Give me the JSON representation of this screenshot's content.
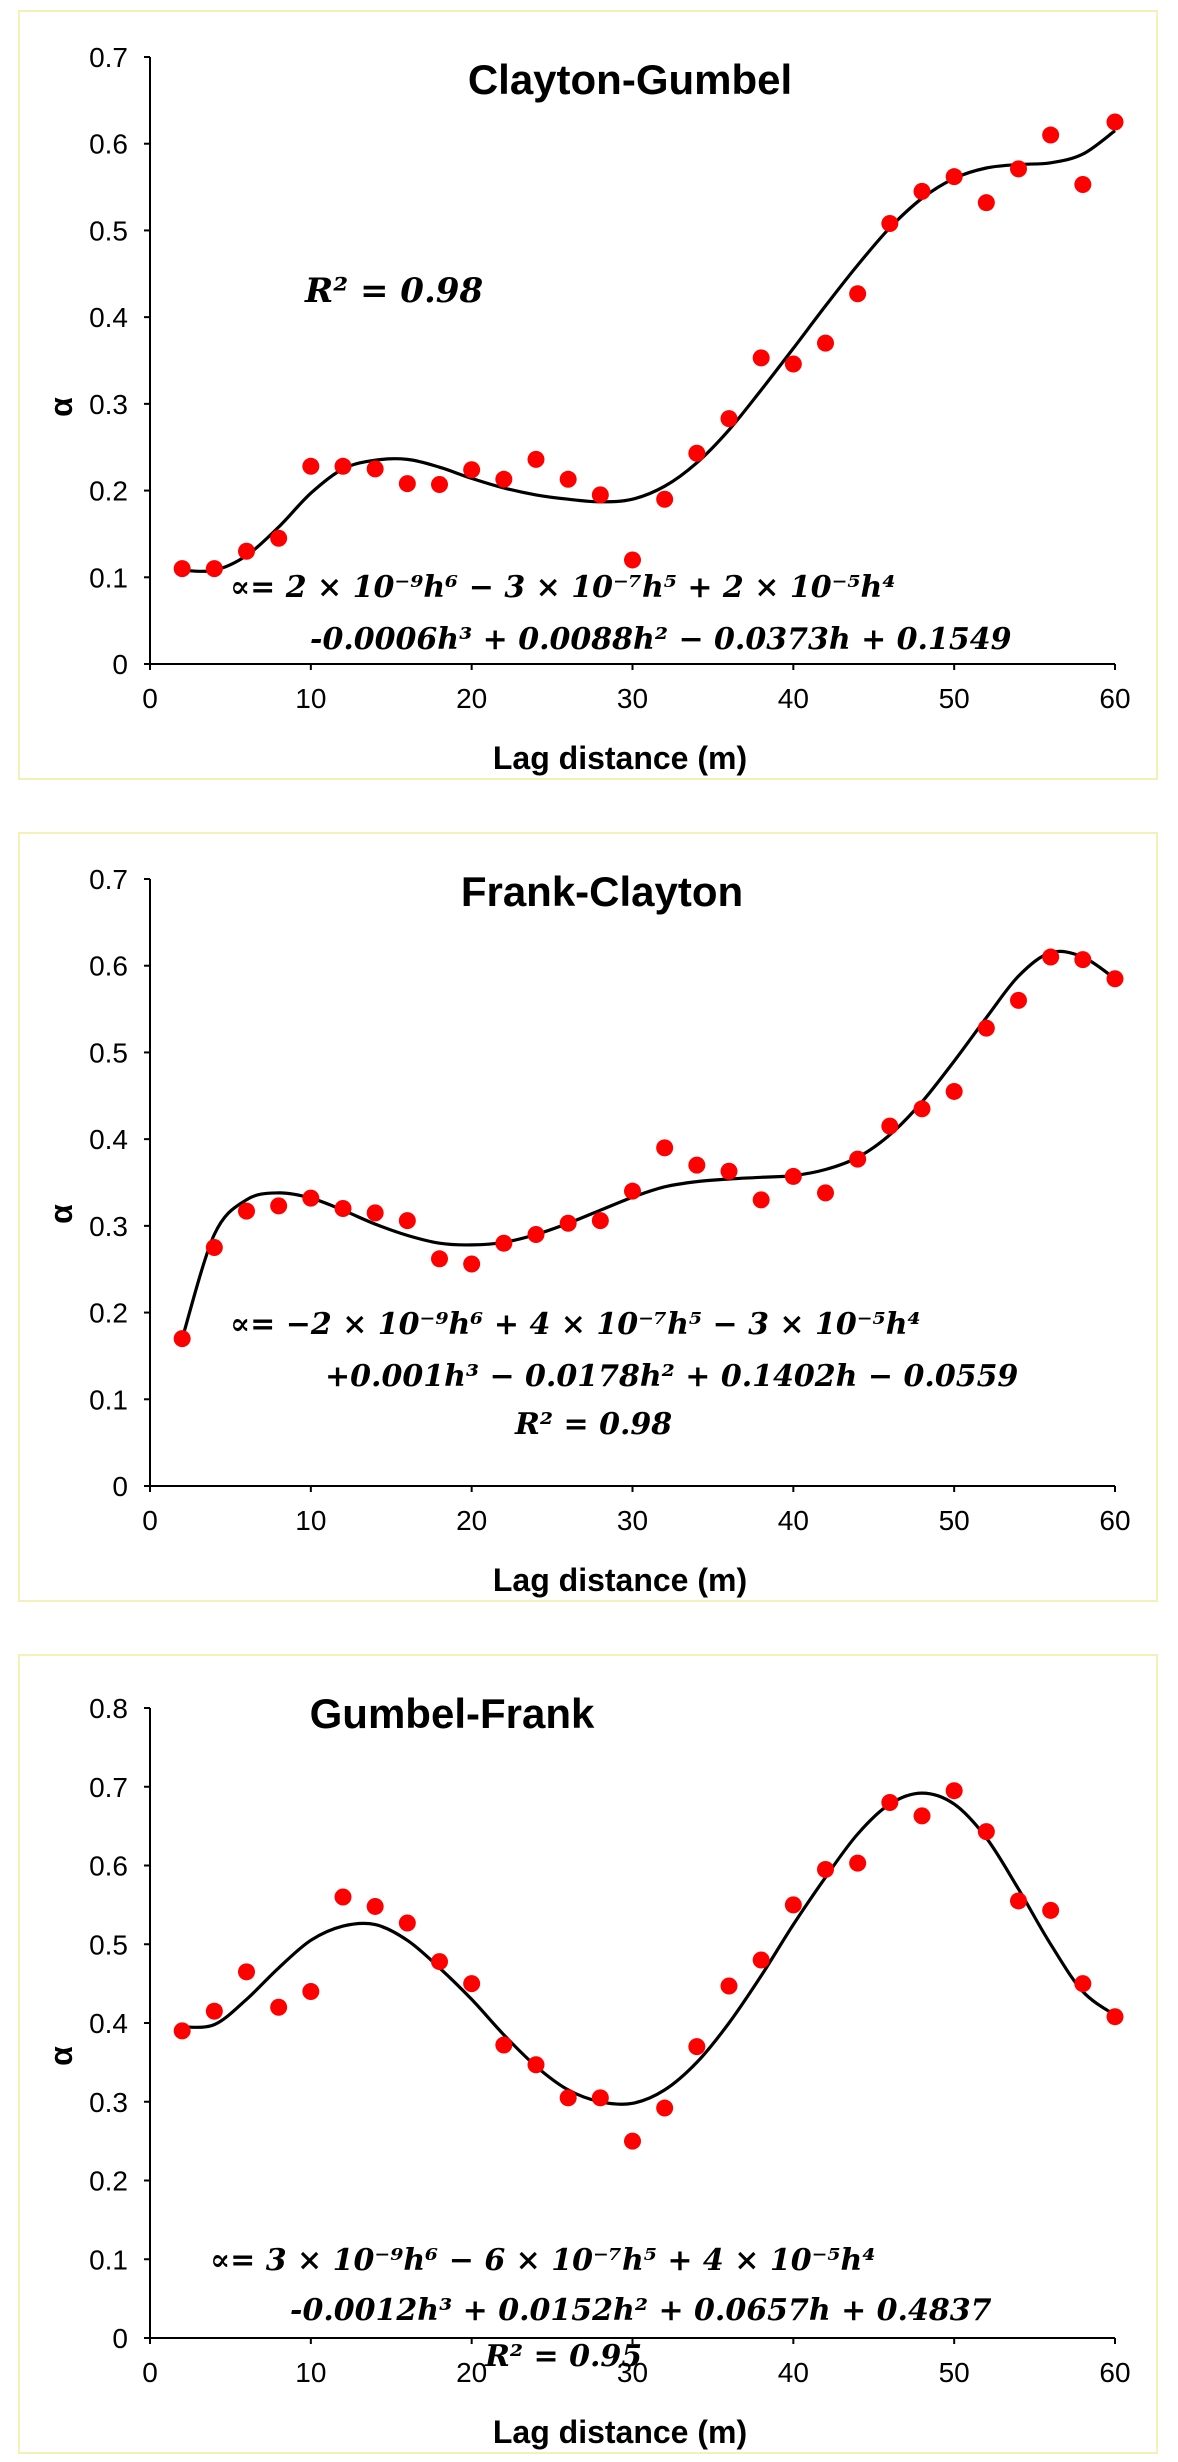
{
  "chart_data": [
    {
      "type": "scatter",
      "title": "Clayton-Gumbel",
      "xlabel": "Lag distance (m)",
      "ylabel": "α",
      "xlim": [
        0,
        60
      ],
      "ylim": [
        0,
        0.7
      ],
      "xticks": [
        0,
        10,
        20,
        30,
        40,
        50,
        60
      ],
      "yticks": [
        0,
        0.1,
        0.2,
        0.3,
        0.4,
        0.5,
        0.6,
        0.7
      ],
      "x": [
        2,
        4,
        6,
        8,
        10,
        12,
        14,
        16,
        18,
        20,
        22,
        24,
        26,
        28,
        30,
        32,
        34,
        36,
        38,
        40,
        42,
        44,
        46,
        48,
        50,
        52,
        54,
        56,
        58,
        60
      ],
      "values": [
        0.11,
        0.11,
        0.13,
        0.145,
        0.228,
        0.228,
        0.225,
        0.208,
        0.207,
        0.224,
        0.213,
        0.236,
        0.213,
        0.195,
        0.12,
        0.19,
        0.243,
        0.283,
        0.353,
        0.346,
        0.37,
        0.427,
        0.508,
        0.545,
        0.562,
        0.532,
        0.571,
        0.61,
        0.553,
        0.625
      ],
      "trendline_x": [
        2,
        4,
        6,
        8,
        10,
        12,
        14,
        16,
        18,
        20,
        22,
        24,
        26,
        28,
        30,
        32,
        34,
        36,
        38,
        40,
        42,
        44,
        46,
        48,
        50,
        52,
        54,
        56,
        58,
        60
      ],
      "trendline": [
        0.108,
        0.108,
        0.125,
        0.158,
        0.197,
        0.225,
        0.235,
        0.236,
        0.227,
        0.214,
        0.203,
        0.195,
        0.19,
        0.187,
        0.19,
        0.205,
        0.232,
        0.27,
        0.316,
        0.364,
        0.413,
        0.46,
        0.503,
        0.537,
        0.56,
        0.572,
        0.576,
        0.578,
        0.588,
        0.615
      ],
      "equation_line1": "∝= 2 × 10⁻⁹h⁶ − 3 × 10⁻⁷h⁵ + 2 × 10⁻⁵h⁴",
      "equation_line2": "-0.0006h³ + 0.0088h² − 0.0373h + 0.1549",
      "r_squared": "R² = 0.98"
    },
    {
      "type": "scatter",
      "title": "Frank-Clayton",
      "xlabel": "Lag distance (m)",
      "ylabel": "α",
      "xlim": [
        0,
        60
      ],
      "ylim": [
        0,
        0.7
      ],
      "xticks": [
        0,
        10,
        20,
        30,
        40,
        50,
        60
      ],
      "yticks": [
        0,
        0.1,
        0.2,
        0.3,
        0.4,
        0.5,
        0.6,
        0.7
      ],
      "x": [
        2,
        4,
        6,
        8,
        10,
        12,
        14,
        16,
        18,
        20,
        22,
        24,
        26,
        28,
        30,
        32,
        34,
        36,
        38,
        40,
        42,
        44,
        46,
        48,
        50,
        52,
        54,
        56,
        58,
        60
      ],
      "values": [
        0.17,
        0.275,
        0.317,
        0.323,
        0.332,
        0.32,
        0.315,
        0.306,
        0.262,
        0.256,
        0.28,
        0.29,
        0.303,
        0.306,
        0.34,
        0.39,
        0.37,
        0.363,
        0.33,
        0.357,
        0.338,
        0.377,
        0.415,
        0.435,
        0.455,
        0.528,
        0.56,
        0.61,
        0.607,
        0.585
      ],
      "trendline_x": [
        2,
        4,
        6,
        8,
        10,
        12,
        14,
        16,
        18,
        20,
        22,
        24,
        26,
        28,
        30,
        32,
        34,
        36,
        38,
        40,
        42,
        44,
        46,
        48,
        50,
        52,
        54,
        56,
        58,
        60
      ],
      "trendline": [
        0.17,
        0.29,
        0.33,
        0.338,
        0.332,
        0.318,
        0.302,
        0.289,
        0.28,
        0.278,
        0.281,
        0.29,
        0.303,
        0.318,
        0.333,
        0.345,
        0.351,
        0.354,
        0.356,
        0.358,
        0.365,
        0.379,
        0.405,
        0.443,
        0.49,
        0.54,
        0.588,
        0.615,
        0.61,
        0.585
      ],
      "equation_line1": "∝= −2 × 10⁻⁹h⁶ + 4 × 10⁻⁷h⁵ − 3 × 10⁻⁵h⁴",
      "equation_line2": "+0.001h³ − 0.0178h² + 0.1402h − 0.0559",
      "r_squared": "R² = 0.98"
    },
    {
      "type": "scatter",
      "title": "Gumbel-Frank",
      "xlabel": "Lag distance (m)",
      "ylabel": "α",
      "xlim": [
        0,
        60
      ],
      "ylim": [
        0,
        0.8
      ],
      "xticks": [
        0,
        10,
        20,
        30,
        40,
        50,
        60
      ],
      "yticks": [
        0,
        0.1,
        0.2,
        0.3,
        0.4,
        0.5,
        0.6,
        0.7,
        0.8
      ],
      "x": [
        2,
        4,
        6,
        8,
        10,
        12,
        14,
        16,
        18,
        20,
        22,
        24,
        26,
        28,
        30,
        32,
        34,
        36,
        38,
        40,
        42,
        44,
        46,
        48,
        50,
        52,
        54,
        56,
        58,
        60
      ],
      "values": [
        0.39,
        0.415,
        0.465,
        0.42,
        0.44,
        0.56,
        0.548,
        0.527,
        0.478,
        0.45,
        0.372,
        0.347,
        0.305,
        0.305,
        0.25,
        0.292,
        0.37,
        0.447,
        0.48,
        0.55,
        0.595,
        0.603,
        0.68,
        0.663,
        0.695,
        0.643,
        0.555,
        0.543,
        0.45,
        0.408
      ],
      "trendline_x": [
        2,
        4,
        6,
        8,
        10,
        12,
        14,
        16,
        18,
        20,
        22,
        24,
        26,
        28,
        30,
        32,
        34,
        36,
        38,
        40,
        42,
        44,
        46,
        48,
        50,
        52,
        54,
        56,
        58,
        60
      ],
      "trendline": [
        0.395,
        0.398,
        0.43,
        0.47,
        0.505,
        0.523,
        0.525,
        0.505,
        0.47,
        0.43,
        0.385,
        0.345,
        0.315,
        0.3,
        0.298,
        0.315,
        0.35,
        0.4,
        0.46,
        0.525,
        0.585,
        0.64,
        0.678,
        0.692,
        0.678,
        0.635,
        0.57,
        0.5,
        0.44,
        0.41
      ],
      "equation_line1": "∝= 3 × 10⁻⁹h⁶ − 6 × 10⁻⁷h⁵ + 4 × 10⁻⁵h⁴",
      "equation_line2": "-0.0012h³ + 0.0152h² + 0.0657h + 0.4837",
      "r_squared": "R² = 0.95"
    }
  ]
}
